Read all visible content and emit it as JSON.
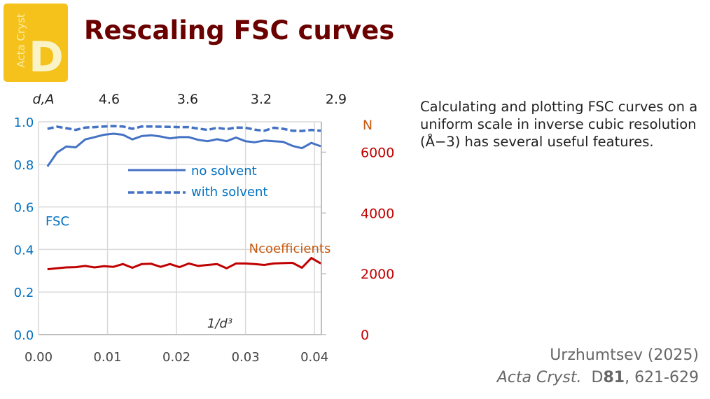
{
  "logo": {
    "vertical_text": "Acta Cryst",
    "letter": "D"
  },
  "title": "Rescaling FSC curves",
  "description": "Calculating and plotting FSC curves on a uniform scale in inverse cubic resolution (Å−3) has several useful features.",
  "citation": {
    "line1": "Urzhumtsev (2025)",
    "journal": "Acta Cryst.",
    "vol_prefix": "D",
    "vol": "81",
    "pages": ", 621-629"
  },
  "colors": {
    "fsc": "#4472c4",
    "fsc_axis": "#0070c0",
    "n": "#c00000",
    "n_label": "#c55a11"
  },
  "chart_data": {
    "type": "line",
    "xlabel": "1/d³",
    "x_top_label": "d,A",
    "x_top_ticks": [
      "4.6",
      "3.6",
      "3.2",
      "2.9"
    ],
    "xlim": [
      0,
      0.041
    ],
    "x_ticks": [
      "0.00",
      "0.01",
      "0.02",
      "0.03",
      "0.04"
    ],
    "x_tick_values": [
      0,
      0.01,
      0.02,
      0.03,
      0.04
    ],
    "ylabel": "FSC",
    "ylim": [
      0,
      1
    ],
    "y_ticks": [
      "0.0",
      "0.2",
      "0.4",
      "0.6",
      "0.8",
      "1.0"
    ],
    "y_tick_values": [
      0,
      0.2,
      0.4,
      0.6,
      0.8,
      1.0
    ],
    "y2label": "N",
    "y2lim": [
      0,
      7000
    ],
    "y2_ticks": [
      "0",
      "2000",
      "4000",
      "6000"
    ],
    "y2_tick_values": [
      0,
      2000,
      4000,
      6000
    ],
    "x_start": 0.0013,
    "x_step": 0.001366,
    "grid": true,
    "legend": [
      "no solvent",
      "with solvent"
    ],
    "series_annotation": "Ncoefficients",
    "series": [
      {
        "name": "no solvent",
        "axis": "left",
        "style": "solid",
        "values": [
          0.79,
          0.855,
          0.884,
          0.88,
          0.917,
          0.928,
          0.939,
          0.944,
          0.939,
          0.917,
          0.933,
          0.937,
          0.931,
          0.922,
          0.928,
          0.928,
          0.915,
          0.909,
          0.918,
          0.909,
          0.926,
          0.909,
          0.904,
          0.912,
          0.909,
          0.906,
          0.887,
          0.876,
          0.901,
          0.885
        ]
      },
      {
        "name": "with solvent",
        "axis": "left",
        "style": "dashed",
        "values": [
          0.967,
          0.977,
          0.97,
          0.962,
          0.973,
          0.975,
          0.978,
          0.98,
          0.978,
          0.967,
          0.978,
          0.978,
          0.977,
          0.976,
          0.975,
          0.975,
          0.968,
          0.962,
          0.972,
          0.965,
          0.973,
          0.972,
          0.963,
          0.958,
          0.972,
          0.967,
          0.958,
          0.957,
          0.962,
          0.958
        ]
      },
      {
        "name": "Ncoefficients",
        "axis": "right",
        "style": "solid",
        "values": [
          2150,
          2180,
          2210,
          2220,
          2260,
          2210,
          2250,
          2230,
          2320,
          2200,
          2320,
          2330,
          2230,
          2320,
          2220,
          2340,
          2260,
          2290,
          2320,
          2180,
          2340,
          2340,
          2320,
          2290,
          2340,
          2350,
          2360,
          2200,
          2520,
          2340
        ]
      }
    ]
  }
}
